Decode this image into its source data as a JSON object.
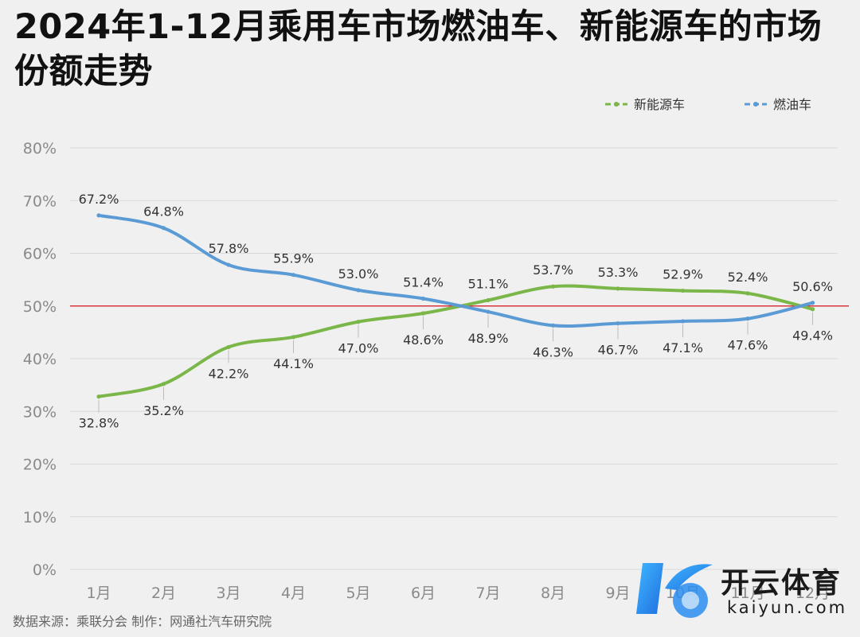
{
  "title": "2024年1-12月乘用车市场燃油车、新能源车的市场份额走势",
  "source": "数据来源：乘联分会  制作：网通社汽车研究院",
  "watermark": {
    "brand": "开云体育",
    "site": "kaiyun.com",
    "logo_icon": "kaiyun-k-logo-icon"
  },
  "chart_data": {
    "type": "line",
    "title": "2024年1-12月乘用车市场燃油车、新能源车的市场份额走势",
    "xlabel": "",
    "ylabel": "",
    "categories": [
      "1月",
      "2月",
      "3月",
      "4月",
      "5月",
      "6月",
      "7月",
      "8月",
      "9月",
      "10月",
      "11月",
      "12月"
    ],
    "ylim": [
      0,
      80
    ],
    "yticks": [
      0,
      10,
      20,
      30,
      40,
      50,
      60,
      70,
      80
    ],
    "ytick_labels": [
      "0%",
      "10%",
      "20%",
      "30%",
      "40%",
      "50%",
      "60%",
      "70%",
      "80%"
    ],
    "grid": true,
    "legend_position": "top-right",
    "reference_line": {
      "value": 50,
      "color": "#d9363e"
    },
    "series": [
      {
        "name": "新能源车",
        "color": "#7ab648",
        "values": [
          32.8,
          35.2,
          42.2,
          44.1,
          47.0,
          48.6,
          51.1,
          53.7,
          53.3,
          52.9,
          52.4,
          49.4
        ],
        "labels": [
          "32.8%",
          "35.2%",
          "42.2%",
          "44.1%",
          "47.0%",
          "48.6%",
          "51.1%",
          "53.7%",
          "53.3%",
          "52.9%",
          "52.4%",
          "49.4%"
        ]
      },
      {
        "name": "燃油车",
        "color": "#5b9bd5",
        "values": [
          67.2,
          64.8,
          57.8,
          55.9,
          53.0,
          51.4,
          48.9,
          46.3,
          46.7,
          47.1,
          47.6,
          50.6
        ],
        "labels": [
          "67.2%",
          "64.8%",
          "57.8%",
          "55.9%",
          "53.0%",
          "51.4%",
          "48.9%",
          "46.3%",
          "46.7%",
          "47.1%",
          "47.6%",
          "50.6%"
        ]
      }
    ]
  }
}
